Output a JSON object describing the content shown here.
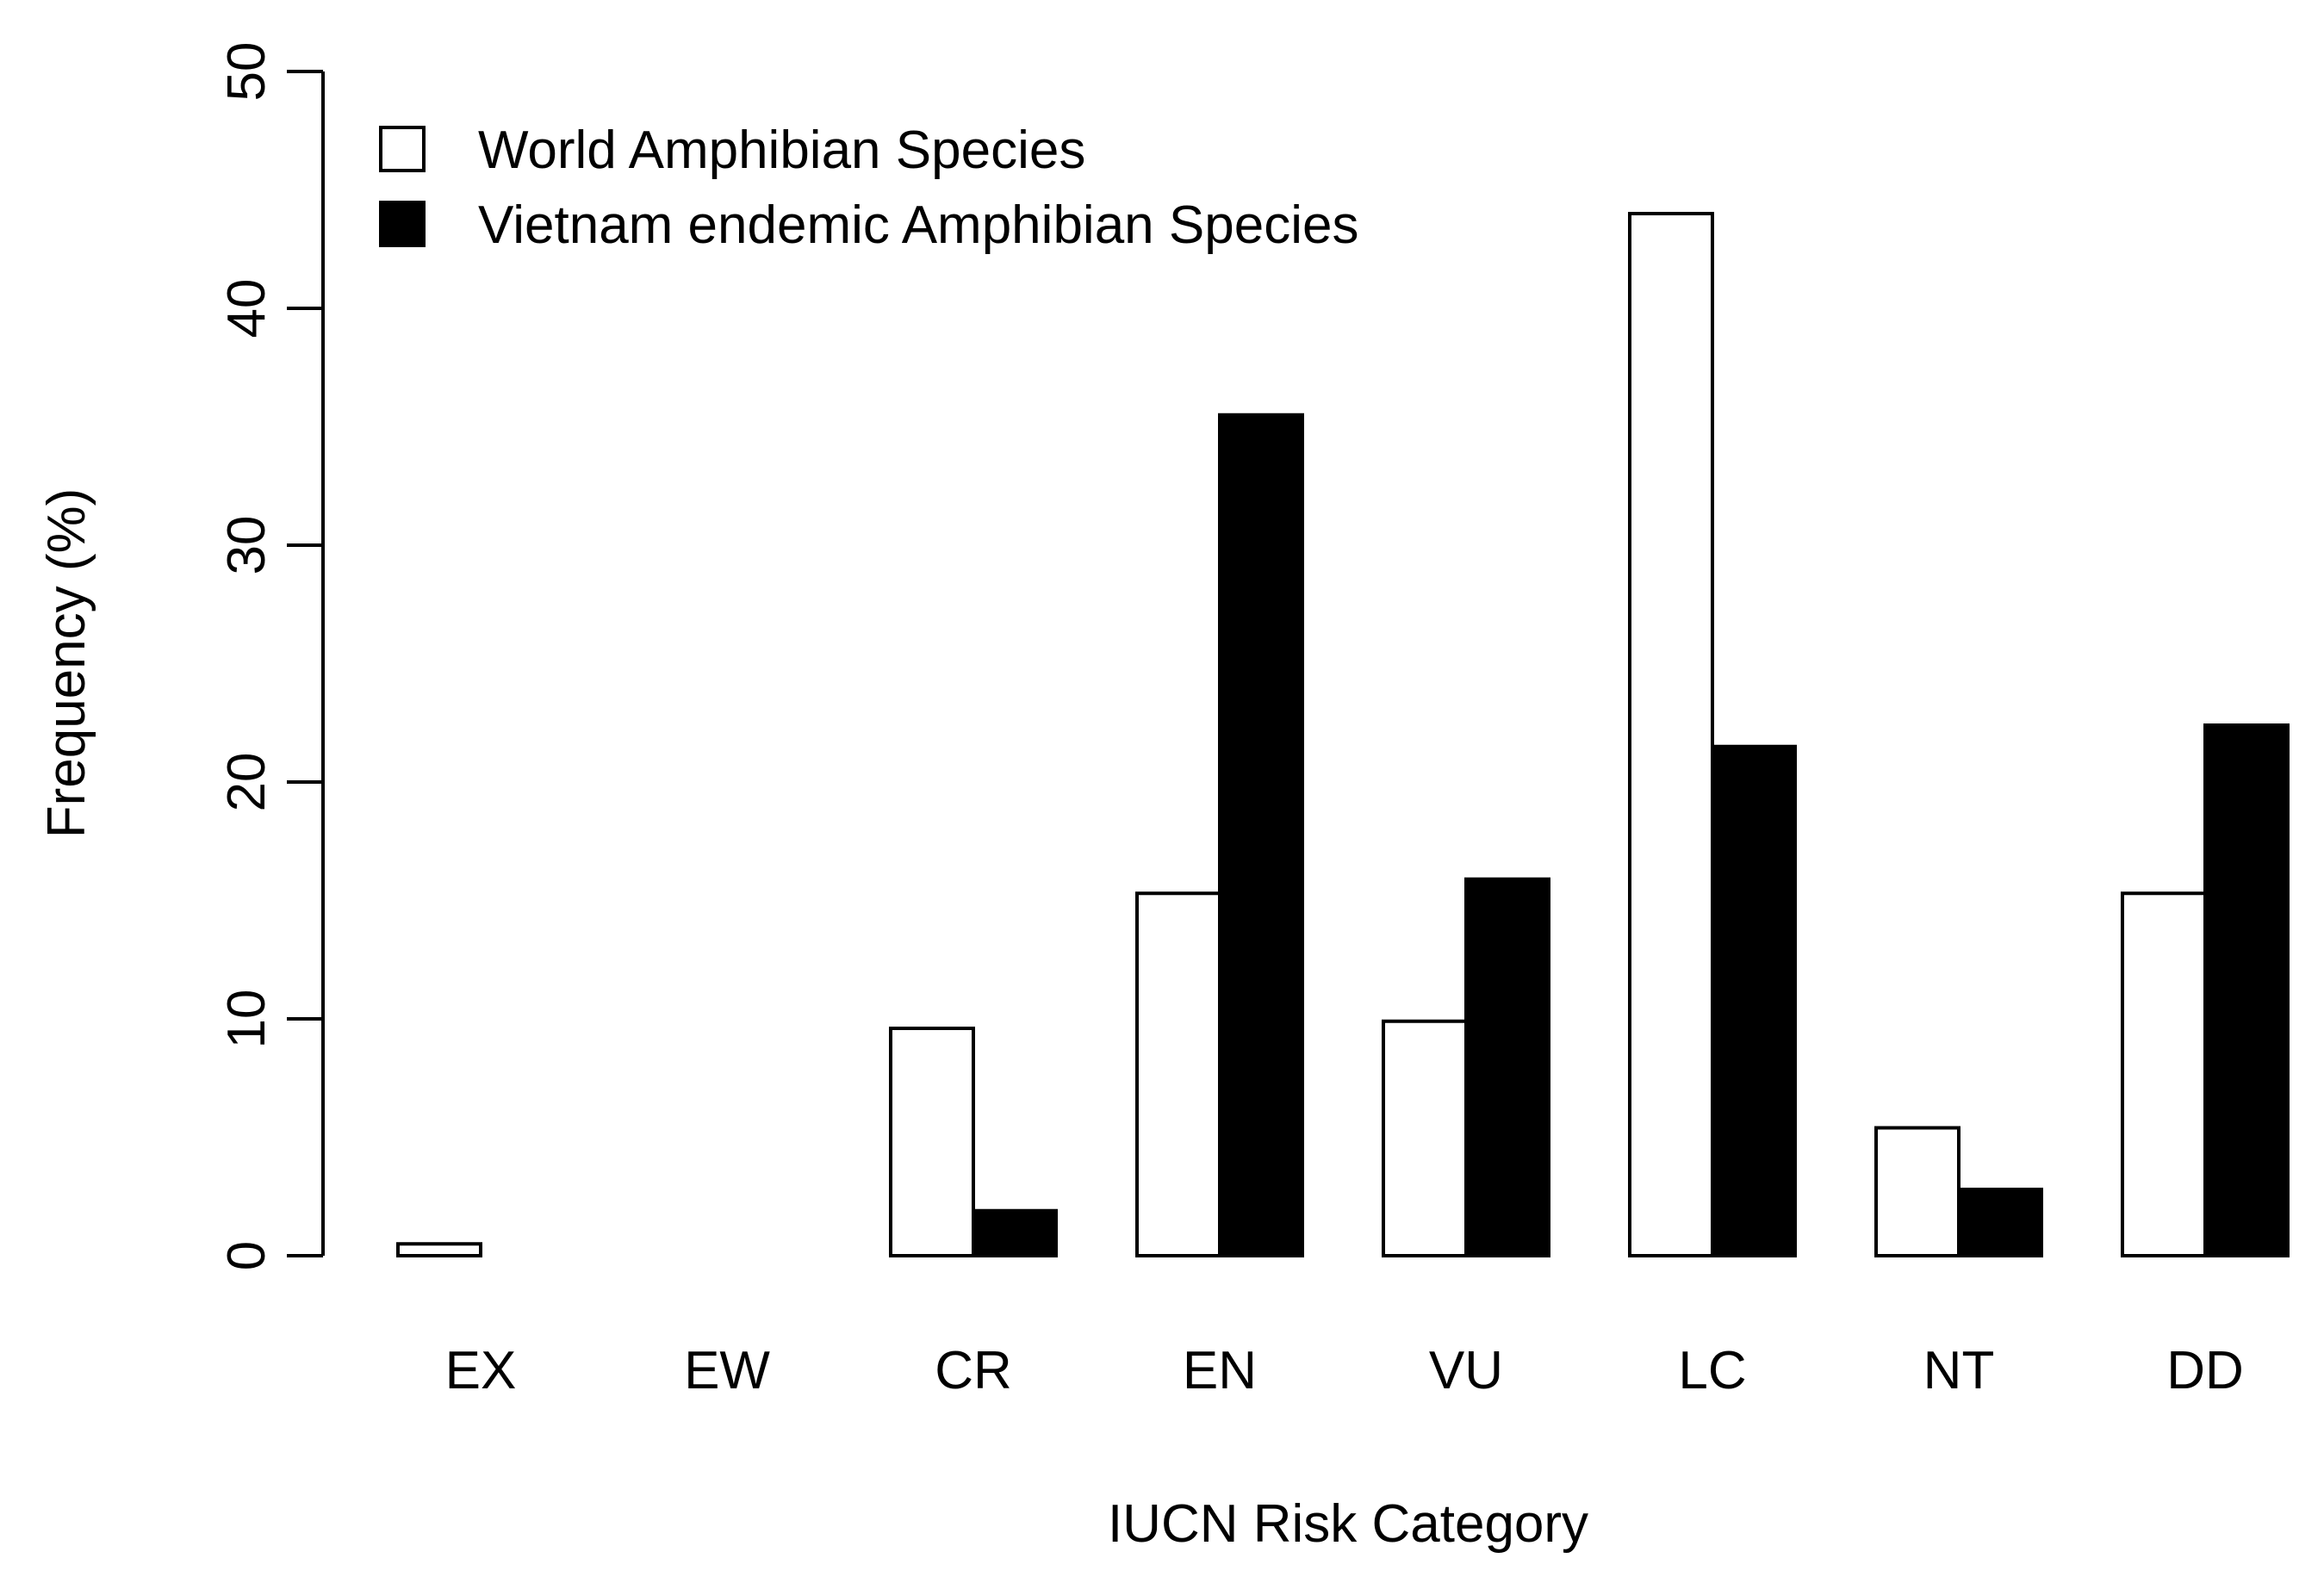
{
  "chart_data": {
    "type": "bar",
    "title": "",
    "xlabel": "IUCN Risk Category",
    "ylabel": "Frequency (%)",
    "categories": [
      "EX",
      "EW",
      "CR",
      "EN",
      "VU",
      "LC",
      "NT",
      "DD"
    ],
    "ylim": [
      0,
      50
    ],
    "yticks": [
      "0",
      "10",
      "20",
      "30",
      "40",
      "50"
    ],
    "grid": false,
    "legend_position": "top-left",
    "series": [
      {
        "name": "World Amphibian Species",
        "color": "#ffffff",
        "values": [
          0.5,
          0,
          9.6,
          15.3,
          9.9,
          44.0,
          5.4,
          15.3
        ]
      },
      {
        "name": "Vietnam endemic Amphibian Species",
        "color": "#000000",
        "values": [
          0,
          0,
          1.9,
          35.5,
          15.9,
          21.5,
          2.8,
          22.4
        ]
      }
    ]
  }
}
